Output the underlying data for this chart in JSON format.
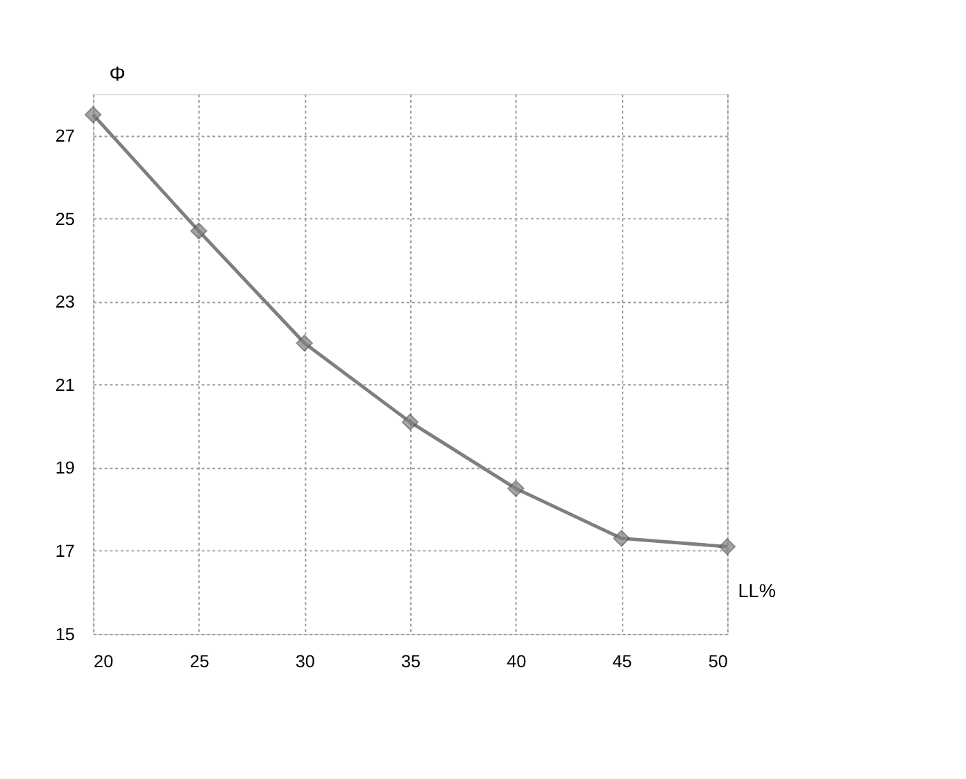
{
  "chart_data": {
    "type": "line",
    "xlabel": "LL%",
    "ylabel": "Φ",
    "x": [
      20,
      25,
      30,
      35,
      40,
      45,
      50
    ],
    "series": [
      {
        "color": "#7f7f7f",
        "values": [
          27.5,
          24.7,
          22.0,
          20.1,
          18.5,
          17.3,
          17.1
        ]
      }
    ],
    "xlim": [
      20,
      50
    ],
    "xticks": [
      20,
      25,
      30,
      35,
      40,
      45,
      50
    ],
    "ylim": [
      15,
      28
    ],
    "yticks": [
      15,
      17,
      19,
      21,
      23,
      25,
      27
    ],
    "grid": true,
    "marker": "diamond",
    "line_style": "solid"
  }
}
